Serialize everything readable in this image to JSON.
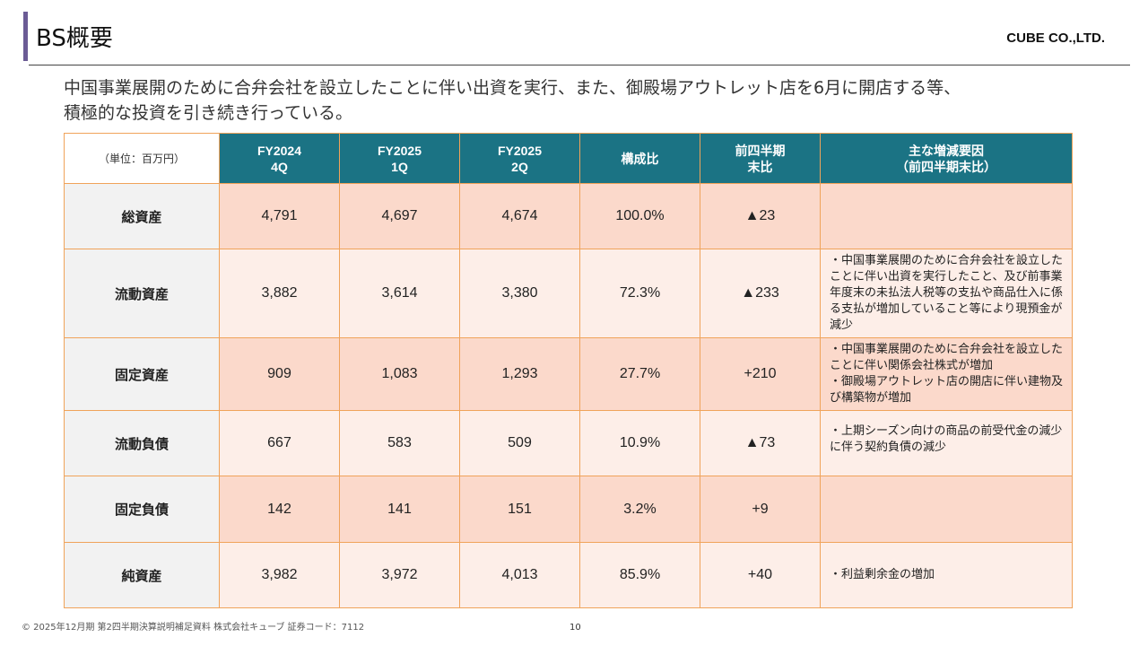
{
  "header": {
    "title": "BS概要",
    "company": "CUBE CO.,LTD."
  },
  "lead": {
    "line1": "中国事業展開のために合弁会社を設立したことに伴い出資を実行、また、御殿場アウトレット店を6月に開店する等、",
    "line2": "積極的な投資を引き続き行っている。"
  },
  "table": {
    "unit_label": "（単位：百万円）",
    "columns": [
      {
        "line1": "FY2024",
        "line2": "4Q"
      },
      {
        "line1": "FY2025",
        "line2": "1Q"
      },
      {
        "line1": "FY2025",
        "line2": "2Q"
      },
      {
        "line1": "構成比",
        "line2": ""
      },
      {
        "line1": "前四半期",
        "line2": "末比"
      },
      {
        "line1": "主な増減要因",
        "line2": "（前四半期末比）"
      }
    ],
    "rows": [
      {
        "label": "総資産",
        "v1": "4,791",
        "v2": "4,697",
        "v3": "4,674",
        "ratio": "100.0%",
        "change": "▲23",
        "note": ""
      },
      {
        "label": "流動資産",
        "v1": "3,882",
        "v2": "3,614",
        "v3": "3,380",
        "ratio": "72.3%",
        "change": "▲233",
        "note": "・中国事業展開のために合弁会社を設立したことに伴い出資を実行したこと、及び前事業年度末の未払法人税等の支払や商品仕入に係る支払が増加していること等により現預金が減少"
      },
      {
        "label": "固定資産",
        "v1": "909",
        "v2": "1,083",
        "v3": "1,293",
        "ratio": "27.7%",
        "change": "+210",
        "note": "・中国事業展開のために合弁会社を設立したことに伴い関係会社株式が増加\n・御殿場アウトレット店の開店に伴い建物及び構築物が増加"
      },
      {
        "label": "流動負債",
        "v1": "667",
        "v2": "583",
        "v3": "509",
        "ratio": "10.9%",
        "change": "▲73",
        "note": "・上期シーズン向けの商品の前受代金の減少に伴う契約負債の減少"
      },
      {
        "label": "固定負債",
        "v1": "142",
        "v2": "141",
        "v3": "151",
        "ratio": "3.2%",
        "change": "+9",
        "note": ""
      },
      {
        "label": "純資産",
        "v1": "3,982",
        "v2": "3,972",
        "v3": "4,013",
        "ratio": "85.9%",
        "change": "+40",
        "note": "・利益剰余金の増加"
      }
    ]
  },
  "footer": {
    "copyright": "© 2025年12月期 第2四半期決算説明補足資料 株式会社キューブ 証券コード：7112",
    "page": "10"
  }
}
